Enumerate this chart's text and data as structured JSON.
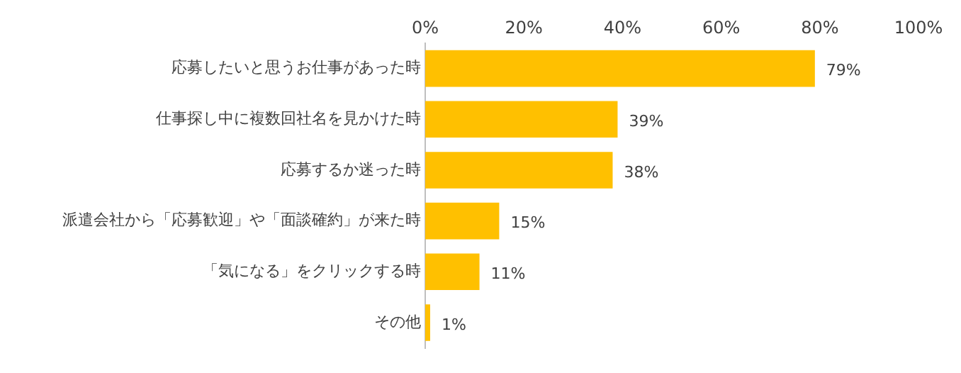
{
  "chart_data": {
    "type": "bar",
    "orientation": "horizontal",
    "categories": [
      "応募したいと思うお仕事があった時",
      "仕事探し中に複数回社名を見かけた時",
      "応募するか迷った時",
      "派遣会社から「応募歓迎」や「面談確約」が来た時",
      "「気になる」をクリックする時",
      "その他"
    ],
    "values": [
      79,
      39,
      38,
      15,
      11,
      1
    ],
    "value_labels": [
      "79%",
      "39%",
      "38%",
      "15%",
      "11%",
      "1%"
    ],
    "color": "#ffc000",
    "xlim": [
      0,
      100
    ],
    "xticks": [
      {
        "value": 0,
        "label": "0%"
      },
      {
        "value": 20,
        "label": "20%"
      },
      {
        "value": 40,
        "label": "40%"
      },
      {
        "value": 60,
        "label": "60%"
      },
      {
        "value": 80,
        "label": "80%"
      },
      {
        "value": 100,
        "label": "100%"
      }
    ],
    "grid": false,
    "legend": false
  }
}
